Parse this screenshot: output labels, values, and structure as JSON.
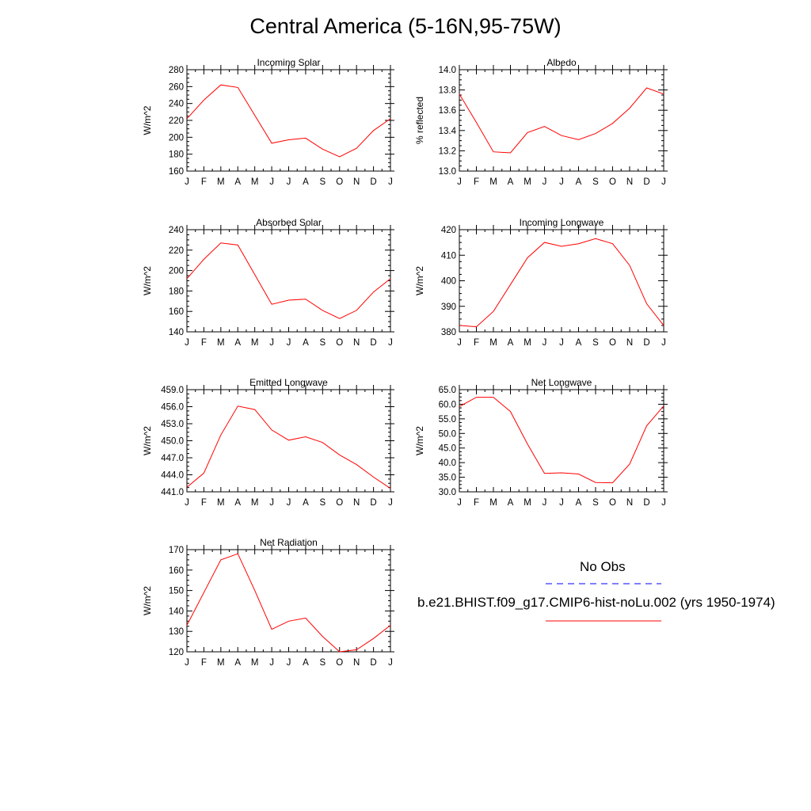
{
  "page": {
    "title": "Central America (5-16N,95-75W)"
  },
  "colors": {
    "model_line": "#ff0000",
    "obs_line": "#0000ff",
    "axis": "#000000"
  },
  "legend": {
    "obs_label": "No Obs",
    "model_label": "b.e21.BHIST.f09_g17.CMIP6-hist-noLu.002 (yrs 1950-1974)"
  },
  "chart_data": [
    {
      "id": "incoming-solar",
      "type": "line",
      "title": "Incoming Solar",
      "ylabel": "W/m^2",
      "xlabel": "",
      "categories": [
        "J",
        "F",
        "M",
        "A",
        "M",
        "J",
        "J",
        "A",
        "S",
        "O",
        "N",
        "D",
        "J"
      ],
      "ylim": [
        160,
        280
      ],
      "yticks": [
        160,
        180,
        200,
        220,
        240,
        260,
        280
      ],
      "ytick_labels": [
        "160",
        "180",
        "200",
        "220",
        "240",
        "260",
        "280"
      ],
      "series": [
        {
          "name": "b.e21.BHIST.f09_g17.CMIP6-hist-noLu.002",
          "values": [
            222,
            244,
            262,
            259,
            226,
            193,
            197,
            199,
            186,
            177,
            187,
            208,
            222
          ]
        }
      ]
    },
    {
      "id": "albedo",
      "type": "line",
      "title": "Albedo",
      "ylabel": "% reflected",
      "xlabel": "",
      "categories": [
        "J",
        "F",
        "M",
        "A",
        "M",
        "J",
        "J",
        "A",
        "S",
        "O",
        "N",
        "D",
        "J"
      ],
      "ylim": [
        13.0,
        14.0
      ],
      "yticks": [
        13.0,
        13.2,
        13.4,
        13.6,
        13.8,
        14.0
      ],
      "ytick_labels": [
        "13.0",
        "13.2",
        "13.4",
        "13.6",
        "13.8",
        "14.0"
      ],
      "series": [
        {
          "name": "b.e21.BHIST.f09_g17.CMIP6-hist-noLu.002",
          "values": [
            13.76,
            13.48,
            13.19,
            13.18,
            13.38,
            13.44,
            13.35,
            13.31,
            13.37,
            13.47,
            13.62,
            13.82,
            13.76
          ]
        }
      ]
    },
    {
      "id": "absorbed-solar",
      "type": "line",
      "title": "Absorbed Solar",
      "ylabel": "W/m^2",
      "xlabel": "",
      "categories": [
        "J",
        "F",
        "M",
        "A",
        "M",
        "J",
        "J",
        "A",
        "S",
        "O",
        "N",
        "D",
        "J"
      ],
      "ylim": [
        140,
        240
      ],
      "yticks": [
        140,
        160,
        180,
        200,
        220,
        240
      ],
      "ytick_labels": [
        "140",
        "160",
        "180",
        "200",
        "220",
        "240"
      ],
      "series": [
        {
          "name": "b.e21.BHIST.f09_g17.CMIP6-hist-noLu.002",
          "values": [
            192,
            211,
            227,
            225,
            196,
            167,
            171,
            172,
            161,
            153,
            161,
            179,
            192
          ]
        }
      ]
    },
    {
      "id": "incoming-longwave",
      "type": "line",
      "title": "Incoming Longwave",
      "ylabel": "W/m^2",
      "xlabel": "",
      "categories": [
        "J",
        "F",
        "M",
        "A",
        "M",
        "J",
        "J",
        "A",
        "S",
        "O",
        "N",
        "D",
        "J"
      ],
      "ylim": [
        380,
        420
      ],
      "yticks": [
        380,
        390,
        400,
        410,
        420
      ],
      "ytick_labels": [
        "380",
        "390",
        "400",
        "410",
        "420"
      ],
      "series": [
        {
          "name": "b.e21.BHIST.f09_g17.CMIP6-hist-noLu.002",
          "values": [
            382.5,
            382,
            388,
            398.5,
            409,
            415,
            413.5,
            414.5,
            416.5,
            414.5,
            406,
            391,
            382.5
          ]
        }
      ]
    },
    {
      "id": "emitted-longwave",
      "type": "line",
      "title": "Emitted Longwave",
      "ylabel": "W/m^2",
      "xlabel": "",
      "categories": [
        "J",
        "F",
        "M",
        "A",
        "M",
        "J",
        "J",
        "A",
        "S",
        "O",
        "N",
        "D",
        "J"
      ],
      "ylim": [
        441.0,
        459.0
      ],
      "yticks": [
        441.0,
        444.0,
        447.0,
        450.0,
        453.0,
        456.0,
        459.0
      ],
      "ytick_labels": [
        "441.0",
        "444.0",
        "447.0",
        "450.0",
        "453.0",
        "456.0",
        "459.0"
      ],
      "series": [
        {
          "name": "b.e21.BHIST.f09_g17.CMIP6-hist-noLu.002",
          "values": [
            441.8,
            444.3,
            451.0,
            456.1,
            455.5,
            451.9,
            450.1,
            450.7,
            449.7,
            447.5,
            445.8,
            443.6,
            441.6
          ]
        }
      ]
    },
    {
      "id": "net-longwave",
      "type": "line",
      "title": "Net Longwave",
      "ylabel": "W/m^2",
      "xlabel": "",
      "categories": [
        "J",
        "F",
        "M",
        "A",
        "M",
        "J",
        "J",
        "A",
        "S",
        "O",
        "N",
        "D",
        "J"
      ],
      "ylim": [
        30.0,
        65.0
      ],
      "yticks": [
        30.0,
        35.0,
        40.0,
        45.0,
        50.0,
        55.0,
        60.0,
        65.0
      ],
      "ytick_labels": [
        "30.0",
        "35.0",
        "40.0",
        "45.0",
        "50.0",
        "55.0",
        "60.0",
        "65.0"
      ],
      "series": [
        {
          "name": "b.e21.BHIST.f09_g17.CMIP6-hist-noLu.002",
          "values": [
            59.2,
            62.4,
            62.4,
            57.5,
            46.4,
            36.3,
            36.5,
            36.1,
            33.2,
            33.1,
            39.5,
            52.6,
            59.4
          ]
        }
      ]
    },
    {
      "id": "net-radiation",
      "type": "line",
      "title": "Net Radiation",
      "ylabel": "W/m^2",
      "xlabel": "",
      "categories": [
        "J",
        "F",
        "M",
        "A",
        "M",
        "J",
        "J",
        "A",
        "S",
        "O",
        "N",
        "D",
        "J"
      ],
      "ylim": [
        120,
        170
      ],
      "yticks": [
        120,
        130,
        140,
        150,
        160,
        170
      ],
      "ytick_labels": [
        "120",
        "130",
        "140",
        "150",
        "160",
        "170"
      ],
      "series": [
        {
          "name": "b.e21.BHIST.f09_g17.CMIP6-hist-noLu.002",
          "values": [
            133,
            149,
            165,
            168,
            150,
            131,
            135,
            136.5,
            127.5,
            120,
            121,
            126.5,
            133
          ]
        }
      ]
    }
  ]
}
